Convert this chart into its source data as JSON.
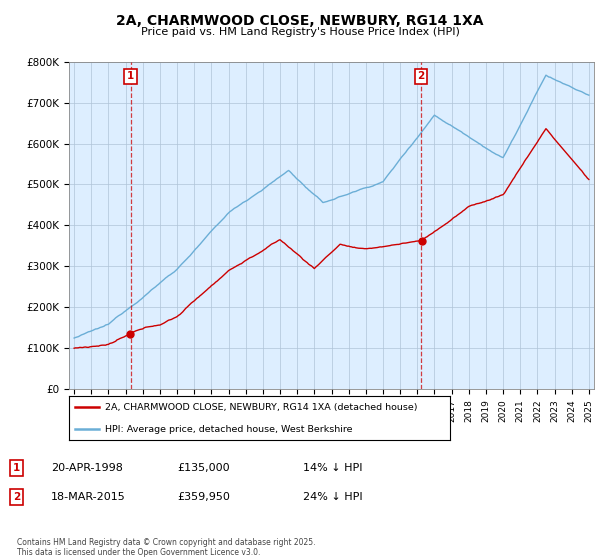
{
  "title": "2A, CHARMWOOD CLOSE, NEWBURY, RG14 1XA",
  "subtitle": "Price paid vs. HM Land Registry's House Price Index (HPI)",
  "legend_line1": "2A, CHARMWOOD CLOSE, NEWBURY, RG14 1XA (detached house)",
  "legend_line2": "HPI: Average price, detached house, West Berkshire",
  "sale1_date": "20-APR-1998",
  "sale1_price": "£135,000",
  "sale1_hpi": "14% ↓ HPI",
  "sale1_year": 1998.29,
  "sale2_date": "18-MAR-2015",
  "sale2_price": "£359,950",
  "sale2_hpi": "24% ↓ HPI",
  "sale2_year": 2015.21,
  "footer": "Contains HM Land Registry data © Crown copyright and database right 2025.\nThis data is licensed under the Open Government Licence v3.0.",
  "hpi_color": "#6baed6",
  "price_color": "#cc0000",
  "vline_color": "#cc0000",
  "plot_bg_color": "#ddeeff",
  "background_color": "#ffffff",
  "grid_color": "#b0c4d8",
  "ylim": [
    0,
    800000
  ],
  "xlim": [
    1994.7,
    2025.3
  ]
}
